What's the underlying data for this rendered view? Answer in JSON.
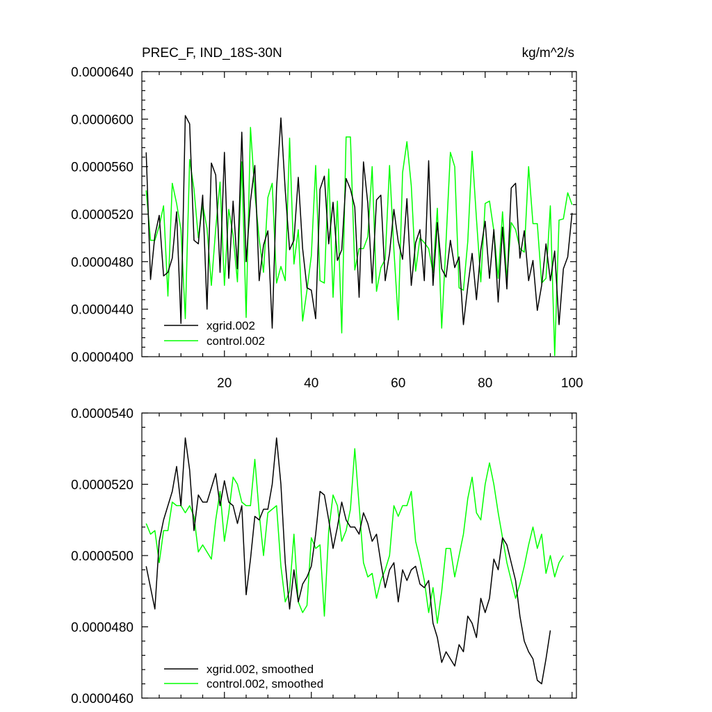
{
  "colors": {
    "xgrid": "#000000",
    "control": "#00ff00"
  },
  "chart_data": [
    {
      "type": "line",
      "title": "PREC_F, IND_18S-30N",
      "units": "kg/m^2/s",
      "xlim": [
        1,
        101
      ],
      "ylim": [
        4e-05,
        6.4e-05
      ],
      "yticks": [
        {
          "v": 4e-05,
          "label": "0.0000400"
        },
        {
          "v": 4.4e-05,
          "label": "0.0000440"
        },
        {
          "v": 4.8e-05,
          "label": "0.0000480"
        },
        {
          "v": 5.2e-05,
          "label": "0.0000520"
        },
        {
          "v": 5.6e-05,
          "label": "0.0000560"
        },
        {
          "v": 6e-05,
          "label": "0.0000600"
        },
        {
          "v": 6.4e-05,
          "label": "0.0000640"
        }
      ],
      "xticks": [
        {
          "v": 20,
          "label": "20"
        },
        {
          "v": 40,
          "label": "40"
        },
        {
          "v": 60,
          "label": "60"
        },
        {
          "v": 80,
          "label": "80"
        },
        {
          "v": 100,
          "label": "100"
        }
      ],
      "legend": "bottom-left",
      "series": [
        {
          "name": "xgrid.002",
          "color": "#000000",
          "values": [
            5.72,
            4.65,
            5.02,
            5.19,
            4.68,
            4.71,
            4.83,
            5.22,
            4.28,
            6.03,
            5.96,
            4.98,
            4.95,
            5.36,
            4.4,
            5.63,
            5.53,
            4.71,
            5.72,
            4.66,
            5.31,
            4.74,
            5.89,
            4.8,
            5.31,
            5.61,
            4.64,
            4.94,
            5.06,
            4.24,
            5.42,
            6.01,
            5.4,
            4.9,
            4.98,
            5.51,
            4.91,
            4.58,
            4.56,
            4.32,
            5.41,
            5.52,
            4.95,
            5.3,
            4.81,
            4.9,
            5.5,
            5.41,
            5.26,
            4.5,
            5.64,
            5.29,
            4.62,
            5.32,
            5.36,
            4.64,
            4.87,
            5.24,
            4.97,
            4.82,
            5.33,
            4.6,
            4.96,
            5.07,
            4.64,
            5.65,
            4.6,
            5.13,
            4.74,
            4.67,
            4.98,
            4.75,
            4.84,
            4.27,
            4.59,
            4.87,
            4.48,
            4.9,
            5.14,
            4.66,
            5.07,
            4.46,
            5.09,
            4.57,
            5.42,
            5.46,
            4.83,
            5.06,
            4.64,
            4.81,
            4.39,
            4.6,
            4.95,
            4.64,
            4.89,
            4.27,
            4.74,
            4.84,
            5.21
          ]
        },
        {
          "name": "control.002",
          "color": "#00ff00",
          "values": [
            5.4,
            4.98,
            4.98,
            5.1,
            5.27,
            4.51,
            5.46,
            5.29,
            5.07,
            4.32,
            5.66,
            5.41,
            5.0,
            5.28,
            5.08,
            4.6,
            5.08,
            5.47,
            4.6,
            5.24,
            5.02,
            4.63,
            5.64,
            4.33,
            5.93,
            5.38,
            4.99,
            4.71,
            5.34,
            5.46,
            4.62,
            4.76,
            4.64,
            5.84,
            4.78,
            5.07,
            4.3,
            4.56,
            4.85,
            5.61,
            4.64,
            4.62,
            5.58,
            4.5,
            5.31,
            4.2,
            5.85,
            5.85,
            4.73,
            4.91,
            4.91,
            5.01,
            5.6,
            4.55,
            4.75,
            4.82,
            5.61,
            4.9,
            4.31,
            5.55,
            5.81,
            5.44,
            4.72,
            5.0,
            4.96,
            4.91,
            4.71,
            5.25,
            4.24,
            4.97,
            5.72,
            5.6,
            4.58,
            4.56,
            4.97,
            5.73,
            5.16,
            4.63,
            5.29,
            5.31,
            5.06,
            4.66,
            5.22,
            4.65,
            5.13,
            5.07,
            4.91,
            4.88,
            5.6,
            5.12,
            5.12,
            4.62,
            4.66,
            5.27,
            4.01,
            5.15,
            5.16,
            5.38,
            5.28
          ]
        }
      ]
    },
    {
      "type": "line",
      "title": "",
      "units": "",
      "xlim": [
        1,
        101
      ],
      "ylim": [
        4.6e-05,
        5.4e-05
      ],
      "yticks": [
        {
          "v": 4.6e-05,
          "label": "0.0000460"
        },
        {
          "v": 4.8e-05,
          "label": "0.0000480"
        },
        {
          "v": 5e-05,
          "label": "0.0000500"
        },
        {
          "v": 5.2e-05,
          "label": "0.0000520"
        },
        {
          "v": 5.4e-05,
          "label": "0.0000540"
        }
      ],
      "xticks": [
        {
          "v": 20,
          "label": ""
        },
        {
          "v": 40,
          "label": ""
        },
        {
          "v": 60,
          "label": ""
        },
        {
          "v": 80,
          "label": ""
        },
        {
          "v": 100,
          "label": ""
        }
      ],
      "legend": "bottom-left",
      "series": [
        {
          "name": "xgrid.002, smoothed",
          "color": "#000000",
          "values": [
            4.97,
            4.91,
            4.85,
            5.04,
            5.1,
            5.14,
            5.18,
            5.25,
            5.14,
            5.33,
            5.24,
            5.07,
            5.17,
            5.15,
            5.15,
            5.19,
            5.23,
            5.14,
            5.21,
            5.15,
            5.14,
            5.09,
            5.14,
            4.89,
            4.99,
            5.11,
            5.1,
            5.13,
            5.13,
            5.2,
            5.33,
            5.2,
            4.98,
            4.85,
            4.96,
            4.87,
            4.92,
            4.94,
            4.97,
            5.06,
            5.18,
            5.17,
            5.1,
            5.02,
            5.08,
            5.15,
            5.1,
            5.08,
            5.08,
            5.06,
            5.12,
            5.09,
            5.04,
            5.06,
            4.98,
            4.91,
            4.96,
            4.98,
            4.87,
            4.96,
            4.93,
            4.96,
            4.97,
            4.92,
            4.91,
            4.93,
            4.81,
            4.77,
            4.7,
            4.73,
            4.71,
            4.69,
            4.75,
            4.73,
            4.83,
            4.81,
            4.77,
            4.88,
            4.84,
            4.88,
            4.99,
            4.96,
            5.05,
            5.03,
            4.98,
            4.93,
            4.83,
            4.76,
            4.73,
            4.71,
            4.65,
            4.64,
            4.71,
            4.79
          ]
        },
        {
          "name": "control.002, smoothed",
          "color": "#00ff00",
          "values": [
            5.09,
            5.06,
            5.07,
            4.98,
            5.07,
            5.07,
            5.15,
            5.14,
            5.14,
            5.12,
            5.14,
            5.11,
            5.01,
            5.03,
            5.01,
            4.99,
            5.1,
            5.18,
            5.04,
            5.12,
            5.22,
            5.2,
            5.15,
            5.14,
            5.14,
            5.27,
            5.12,
            5.0,
            5.12,
            5.13,
            5.14,
            4.97,
            4.87,
            4.9,
            5.06,
            4.87,
            4.84,
            4.86,
            5.05,
            5.02,
            5.03,
            4.83,
            5.07,
            5.17,
            5.14,
            5.04,
            5.07,
            5.13,
            5.3,
            5.14,
            4.98,
            4.94,
            4.95,
            4.88,
            4.93,
            4.96,
            5.0,
            5.14,
            5.11,
            5.14,
            5.14,
            5.18,
            5.04,
            4.99,
            4.93,
            4.84,
            4.91,
            4.81,
            4.9,
            5.02,
            5.02,
            4.94,
            5.0,
            5.06,
            5.16,
            5.22,
            5.12,
            5.1,
            5.2,
            5.26,
            5.2,
            5.12,
            5.05,
            4.98,
            4.93,
            4.88,
            4.92,
            4.97,
            5.03,
            5.08,
            5.02,
            5.06,
            4.95,
            5.0,
            4.94,
            4.98,
            5.0
          ]
        }
      ]
    }
  ]
}
